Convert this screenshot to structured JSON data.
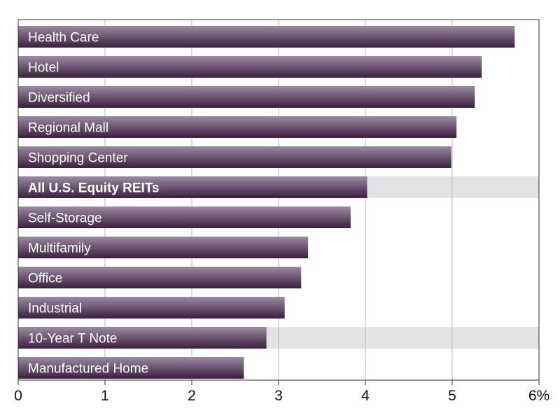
{
  "chart_data": {
    "type": "bar",
    "orientation": "horizontal",
    "categories": [
      "Health Care",
      "Hotel",
      "Diversified",
      "Regional Mall",
      "Shopping Center",
      "All U.S. Equity REITs",
      "Self-Storage",
      "Multifamily",
      "Office",
      "Industrial",
      "10-Year T Note",
      "Manufactured Home"
    ],
    "values": [
      5.72,
      5.34,
      5.26,
      5.05,
      4.99,
      4.02,
      3.83,
      3.34,
      3.26,
      3.07,
      2.86,
      2.6
    ],
    "highlighted_categories": [
      "All U.S. Equity REITs",
      "10-Year T Note"
    ],
    "bold_categories": [
      "All U.S. Equity REITs"
    ],
    "xlim": [
      0,
      6
    ],
    "x_ticks": [
      0,
      1,
      2,
      3,
      4,
      5,
      6
    ],
    "x_tick_labels": [
      "0",
      "1",
      "2",
      "3",
      "4",
      "5",
      "6%"
    ],
    "grid": "vertical",
    "title": "",
    "xlabel": "",
    "ylabel": "",
    "colors": {
      "bar_light": "#9c8aa2",
      "bar_dark": "#3a1f3e",
      "highlight_band": "#e3e3e5",
      "grid": "#b8b8b8",
      "frame": "#333333"
    }
  }
}
